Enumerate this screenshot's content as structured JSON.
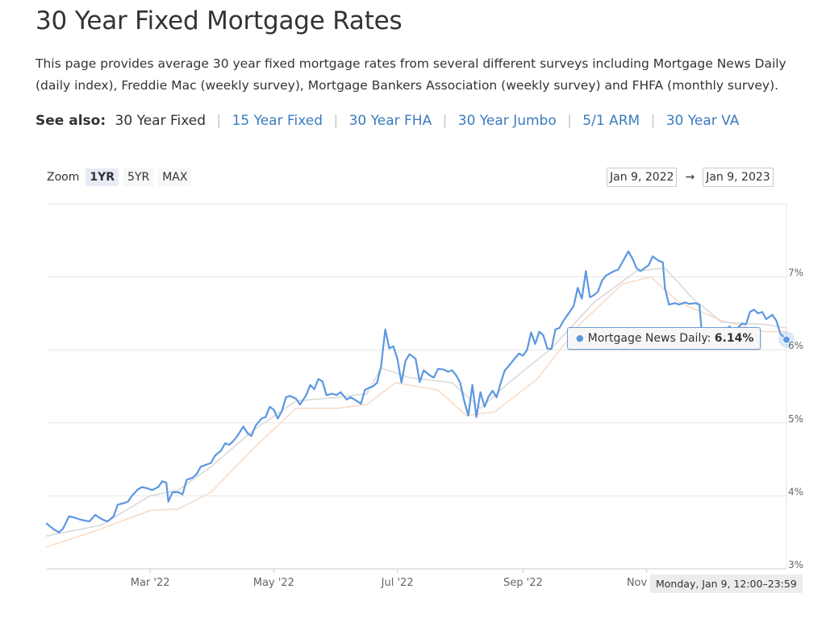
{
  "page": {
    "title": "30 Year Fixed Mortgage Rates",
    "intro": "This page provides average 30 year fixed mortgage rates from several different surveys including Mortgage News Daily (daily index), Freddie Mac (weekly survey), Mortgage Bankers Association (weekly survey) and FHFA (monthly survey).",
    "see_also": {
      "label": "See also:",
      "current": "30 Year Fixed",
      "links": [
        "15 Year Fixed",
        "30 Year FHA",
        "30 Year Jumbo",
        "5/1 ARM",
        "30 Year VA"
      ]
    }
  },
  "controls": {
    "zoom_label": "Zoom",
    "zoom_options": [
      "1YR",
      "5YR",
      "MAX"
    ],
    "zoom_active": "1YR",
    "range_from": "Jan 9, 2022",
    "range_arrow": "→",
    "range_to": "Jan 9, 2023"
  },
  "tooltip": {
    "series_label": "Mortgage News Daily:",
    "value_text": "6.14%",
    "x_label": "Monday, Jan 9, 12:00–23:59"
  },
  "colors": {
    "main_line": "#5b97e1",
    "line_grey": "#dadada",
    "line_peach": "#f8dcc8",
    "link": "#3b7bbf"
  },
  "chart_data": {
    "type": "line",
    "y_axis_side": "right",
    "ylim": [
      3,
      8
    ],
    "yticks": [
      "3%",
      "4%",
      "5%",
      "6%",
      "7%"
    ],
    "x_ticks": [
      "Mar '22",
      "May '22",
      "Jul '22",
      "Sep '22",
      "Nov '22"
    ],
    "x_range": [
      "2022-01-09",
      "2023-01-09"
    ],
    "grid": true,
    "series": [
      {
        "name": "Mortgage News Daily",
        "color": "#5b97e1",
        "points": [
          [
            "2022-01-09",
            3.62
          ],
          [
            "2022-01-12",
            3.55
          ],
          [
            "2022-01-15",
            3.5
          ],
          [
            "2022-01-17",
            3.55
          ],
          [
            "2022-01-20",
            3.72
          ],
          [
            "2022-01-23",
            3.7
          ],
          [
            "2022-01-25",
            3.68
          ],
          [
            "2022-01-28",
            3.66
          ],
          [
            "2022-01-30",
            3.65
          ],
          [
            "2022-02-02",
            3.74
          ],
          [
            "2022-02-04",
            3.7
          ],
          [
            "2022-02-06",
            3.67
          ],
          [
            "2022-02-08",
            3.65
          ],
          [
            "2022-02-11",
            3.72
          ],
          [
            "2022-02-13",
            3.88
          ],
          [
            "2022-02-16",
            3.9
          ],
          [
            "2022-02-18",
            3.92
          ],
          [
            "2022-02-20",
            4.0
          ],
          [
            "2022-02-23",
            4.09
          ],
          [
            "2022-02-25",
            4.12
          ],
          [
            "2022-02-28",
            4.1
          ],
          [
            "2022-03-02",
            4.08
          ],
          [
            "2022-03-05",
            4.12
          ],
          [
            "2022-03-07",
            4.2
          ],
          [
            "2022-03-09",
            4.18
          ],
          [
            "2022-03-10",
            3.92
          ],
          [
            "2022-03-12",
            4.05
          ],
          [
            "2022-03-15",
            4.05
          ],
          [
            "2022-03-17",
            4.02
          ],
          [
            "2022-03-19",
            4.22
          ],
          [
            "2022-03-22",
            4.25
          ],
          [
            "2022-03-24",
            4.3
          ],
          [
            "2022-03-26",
            4.4
          ],
          [
            "2022-03-28",
            4.42
          ],
          [
            "2022-03-31",
            4.45
          ],
          [
            "2022-04-02",
            4.55
          ],
          [
            "2022-04-05",
            4.62
          ],
          [
            "2022-04-07",
            4.72
          ],
          [
            "2022-04-09",
            4.7
          ],
          [
            "2022-04-11",
            4.75
          ],
          [
            "2022-04-13",
            4.82
          ],
          [
            "2022-04-16",
            4.95
          ],
          [
            "2022-04-18",
            4.86
          ],
          [
            "2022-04-20",
            4.82
          ],
          [
            "2022-04-22",
            4.96
          ],
          [
            "2022-04-25",
            5.06
          ],
          [
            "2022-04-27",
            5.08
          ],
          [
            "2022-04-29",
            5.22
          ],
          [
            "2022-05-01",
            5.18
          ],
          [
            "2022-05-03",
            5.06
          ],
          [
            "2022-05-05",
            5.16
          ],
          [
            "2022-05-07",
            5.35
          ],
          [
            "2022-05-09",
            5.37
          ],
          [
            "2022-05-12",
            5.33
          ],
          [
            "2022-05-14",
            5.25
          ],
          [
            "2022-05-17",
            5.38
          ],
          [
            "2022-05-19",
            5.52
          ],
          [
            "2022-05-21",
            5.46
          ],
          [
            "2022-05-23",
            5.6
          ],
          [
            "2022-05-25",
            5.57
          ],
          [
            "2022-05-27",
            5.38
          ],
          [
            "2022-05-30",
            5.4
          ],
          [
            "2022-06-01",
            5.38
          ],
          [
            "2022-06-03",
            5.42
          ],
          [
            "2022-06-06",
            5.32
          ],
          [
            "2022-06-08",
            5.35
          ],
          [
            "2022-06-11",
            5.3
          ],
          [
            "2022-06-13",
            5.26
          ],
          [
            "2022-06-15",
            5.45
          ],
          [
            "2022-06-17",
            5.48
          ],
          [
            "2022-06-19",
            5.5
          ],
          [
            "2022-06-21",
            5.55
          ],
          [
            "2022-06-23",
            5.78
          ],
          [
            "2022-06-25",
            6.28
          ],
          [
            "2022-06-27",
            6.02
          ],
          [
            "2022-06-29",
            6.05
          ],
          [
            "2022-07-01",
            5.88
          ],
          [
            "2022-07-03",
            5.55
          ],
          [
            "2022-07-05",
            5.85
          ],
          [
            "2022-07-07",
            5.94
          ],
          [
            "2022-07-10",
            5.88
          ],
          [
            "2022-07-12",
            5.56
          ],
          [
            "2022-07-14",
            5.72
          ],
          [
            "2022-07-17",
            5.65
          ],
          [
            "2022-07-19",
            5.62
          ],
          [
            "2022-07-21",
            5.74
          ],
          [
            "2022-07-24",
            5.73
          ],
          [
            "2022-07-26",
            5.7
          ],
          [
            "2022-07-28",
            5.72
          ],
          [
            "2022-07-30",
            5.65
          ],
          [
            "2022-08-01",
            5.55
          ],
          [
            "2022-08-03",
            5.3
          ],
          [
            "2022-08-05",
            5.1
          ],
          [
            "2022-08-07",
            5.52
          ],
          [
            "2022-08-09",
            5.08
          ],
          [
            "2022-08-11",
            5.42
          ],
          [
            "2022-08-13",
            5.22
          ],
          [
            "2022-08-15",
            5.36
          ],
          [
            "2022-08-17",
            5.44
          ],
          [
            "2022-08-19",
            5.35
          ],
          [
            "2022-08-21",
            5.55
          ],
          [
            "2022-08-23",
            5.72
          ],
          [
            "2022-08-25",
            5.78
          ],
          [
            "2022-08-27",
            5.85
          ],
          [
            "2022-08-30",
            5.95
          ],
          [
            "2022-09-01",
            5.92
          ],
          [
            "2022-09-03",
            6.0
          ],
          [
            "2022-09-05",
            6.24
          ],
          [
            "2022-09-07",
            6.08
          ],
          [
            "2022-09-09",
            6.25
          ],
          [
            "2022-09-11",
            6.2
          ],
          [
            "2022-09-13",
            6.02
          ],
          [
            "2022-09-15",
            6.01
          ],
          [
            "2022-09-17",
            6.28
          ],
          [
            "2022-09-19",
            6.3
          ],
          [
            "2022-09-21",
            6.4
          ],
          [
            "2022-09-23",
            6.48
          ],
          [
            "2022-09-26",
            6.6
          ],
          [
            "2022-09-28",
            6.85
          ],
          [
            "2022-09-30",
            6.7
          ],
          [
            "2022-10-02",
            7.08
          ],
          [
            "2022-10-04",
            6.72
          ],
          [
            "2022-10-06",
            6.75
          ],
          [
            "2022-10-08",
            6.8
          ],
          [
            "2022-10-10",
            6.95
          ],
          [
            "2022-10-12",
            7.02
          ],
          [
            "2022-10-14",
            7.05
          ],
          [
            "2022-10-16",
            7.08
          ],
          [
            "2022-10-18",
            7.1
          ],
          [
            "2022-10-20",
            7.2
          ],
          [
            "2022-10-23",
            7.35
          ],
          [
            "2022-10-25",
            7.25
          ],
          [
            "2022-10-27",
            7.12
          ],
          [
            "2022-10-29",
            7.08
          ],
          [
            "2022-10-31",
            7.12
          ],
          [
            "2022-11-02",
            7.16
          ],
          [
            "2022-11-04",
            7.28
          ],
          [
            "2022-11-07",
            7.22
          ],
          [
            "2022-11-09",
            7.2
          ],
          [
            "2022-11-10",
            6.85
          ],
          [
            "2022-11-12",
            6.62
          ],
          [
            "2022-11-15",
            6.64
          ],
          [
            "2022-11-17",
            6.62
          ],
          [
            "2022-11-20",
            6.65
          ],
          [
            "2022-11-22",
            6.63
          ],
          [
            "2022-11-25",
            6.64
          ],
          [
            "2022-11-27",
            6.62
          ],
          [
            "2022-11-28",
            6.3
          ],
          [
            "2022-12-01",
            6.25
          ],
          [
            "2022-12-04",
            6.28
          ],
          [
            "2022-12-06",
            6.3
          ],
          [
            "2022-12-08",
            6.25
          ],
          [
            "2022-12-10",
            6.28
          ],
          [
            "2022-12-12",
            6.32
          ],
          [
            "2022-12-14",
            6.22
          ],
          [
            "2022-12-16",
            6.3
          ],
          [
            "2022-12-18",
            6.36
          ],
          [
            "2022-12-20",
            6.35
          ],
          [
            "2022-12-22",
            6.52
          ],
          [
            "2022-12-24",
            6.55
          ],
          [
            "2022-12-26",
            6.5
          ],
          [
            "2022-12-28",
            6.52
          ],
          [
            "2022-12-30",
            6.42
          ],
          [
            "2023-01-02",
            6.48
          ],
          [
            "2023-01-04",
            6.4
          ],
          [
            "2023-01-06",
            6.22
          ],
          [
            "2023-01-09",
            6.14
          ]
        ]
      },
      {
        "color": "#dadada",
        "points": [
          [
            "2022-01-09",
            3.45
          ],
          [
            "2022-02-05",
            3.6
          ],
          [
            "2022-03-01",
            4.0
          ],
          [
            "2022-03-15",
            4.08
          ],
          [
            "2022-03-31",
            4.4
          ],
          [
            "2022-04-21",
            4.9
          ],
          [
            "2022-05-12",
            5.3
          ],
          [
            "2022-06-02",
            5.35
          ],
          [
            "2022-06-16",
            5.4
          ],
          [
            "2022-06-23",
            5.75
          ],
          [
            "2022-07-07",
            5.62
          ],
          [
            "2022-07-28",
            5.55
          ],
          [
            "2022-08-11",
            5.2
          ],
          [
            "2022-08-25",
            5.55
          ],
          [
            "2022-09-15",
            6.02
          ],
          [
            "2022-10-06",
            6.65
          ],
          [
            "2022-10-27",
            7.08
          ],
          [
            "2022-11-10",
            7.12
          ],
          [
            "2022-11-24",
            6.7
          ],
          [
            "2022-12-08",
            6.38
          ],
          [
            "2022-12-29",
            6.35
          ],
          [
            "2023-01-09",
            6.3
          ]
        ]
      },
      {
        "color": "#f8dcc8",
        "points": [
          [
            "2022-01-09",
            3.3
          ],
          [
            "2022-02-05",
            3.55
          ],
          [
            "2022-03-01",
            3.8
          ],
          [
            "2022-03-15",
            3.82
          ],
          [
            "2022-03-31",
            4.05
          ],
          [
            "2022-04-21",
            4.65
          ],
          [
            "2022-05-12",
            5.2
          ],
          [
            "2022-06-02",
            5.2
          ],
          [
            "2022-06-16",
            5.25
          ],
          [
            "2022-06-30",
            5.55
          ],
          [
            "2022-07-21",
            5.45
          ],
          [
            "2022-08-04",
            5.1
          ],
          [
            "2022-08-18",
            5.15
          ],
          [
            "2022-09-08",
            5.6
          ],
          [
            "2022-09-29",
            6.35
          ],
          [
            "2022-10-20",
            6.9
          ],
          [
            "2022-11-03",
            7.0
          ],
          [
            "2022-11-17",
            6.65
          ],
          [
            "2022-12-08",
            6.4
          ],
          [
            "2022-12-29",
            6.25
          ],
          [
            "2023-01-09",
            6.25
          ]
        ]
      }
    ]
  }
}
